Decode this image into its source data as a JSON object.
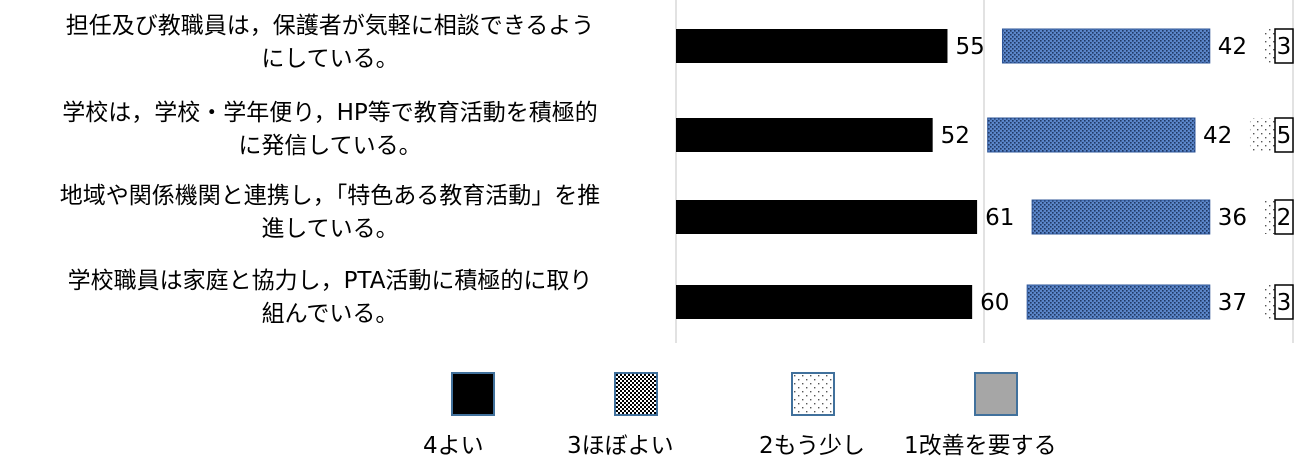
{
  "chart_data": {
    "type": "bar",
    "orientation": "horizontal",
    "stacked": true,
    "percent": true,
    "categories": [
      "担任及び教職員は，保護者が気軽に相談できるようにしている。",
      "学校は，学校・学年便り，HP等で教育活動を積極的に発信している。",
      "地域や関係機関と連携し，「特色ある教育活動」を推進している。",
      "学校職員は家庭と協力し，PTA活動に積極的に取り組んでいる。"
    ],
    "category_lines": [
      [
        "担任及び教職員は，保護者が気軽に相談できるよう",
        "にしている。"
      ],
      [
        "学校は，学校・学年便り，HP等で教育活動を積極的",
        "に発信している。"
      ],
      [
        "地域や関係機関と連携し，「特色ある教育活動」を推",
        "進している。"
      ],
      [
        "学校職員は家庭と協力し，PTA活動に積極的に取り",
        "組んでいる。"
      ]
    ],
    "series": [
      {
        "name": "4よい",
        "values": [
          55,
          52,
          61,
          60
        ],
        "color": "#000000",
        "pattern": "solid"
      },
      {
        "name": "3ほぼよい",
        "values": [
          42,
          42,
          36,
          37
        ],
        "color": "#4472c4",
        "pattern": "dense-dots"
      },
      {
        "name": "2もう少し",
        "values": [
          3,
          5,
          2,
          3
        ],
        "color": "#ffffff",
        "pattern": "sparse-dots"
      },
      {
        "name": "1改善を要する",
        "values": [
          0,
          0,
          0,
          0
        ],
        "color": "#a6a6a6",
        "pattern": "solid"
      }
    ],
    "data_labels": [
      [
        "55",
        "42",
        "3",
        ""
      ],
      [
        "52",
        "42",
        "5",
        ""
      ],
      [
        "61",
        "36",
        "2",
        ""
      ],
      [
        "60",
        "37",
        "3",
        ""
      ]
    ],
    "xlim": [
      0,
      100
    ],
    "grid": true,
    "legend_position": "bottom"
  }
}
